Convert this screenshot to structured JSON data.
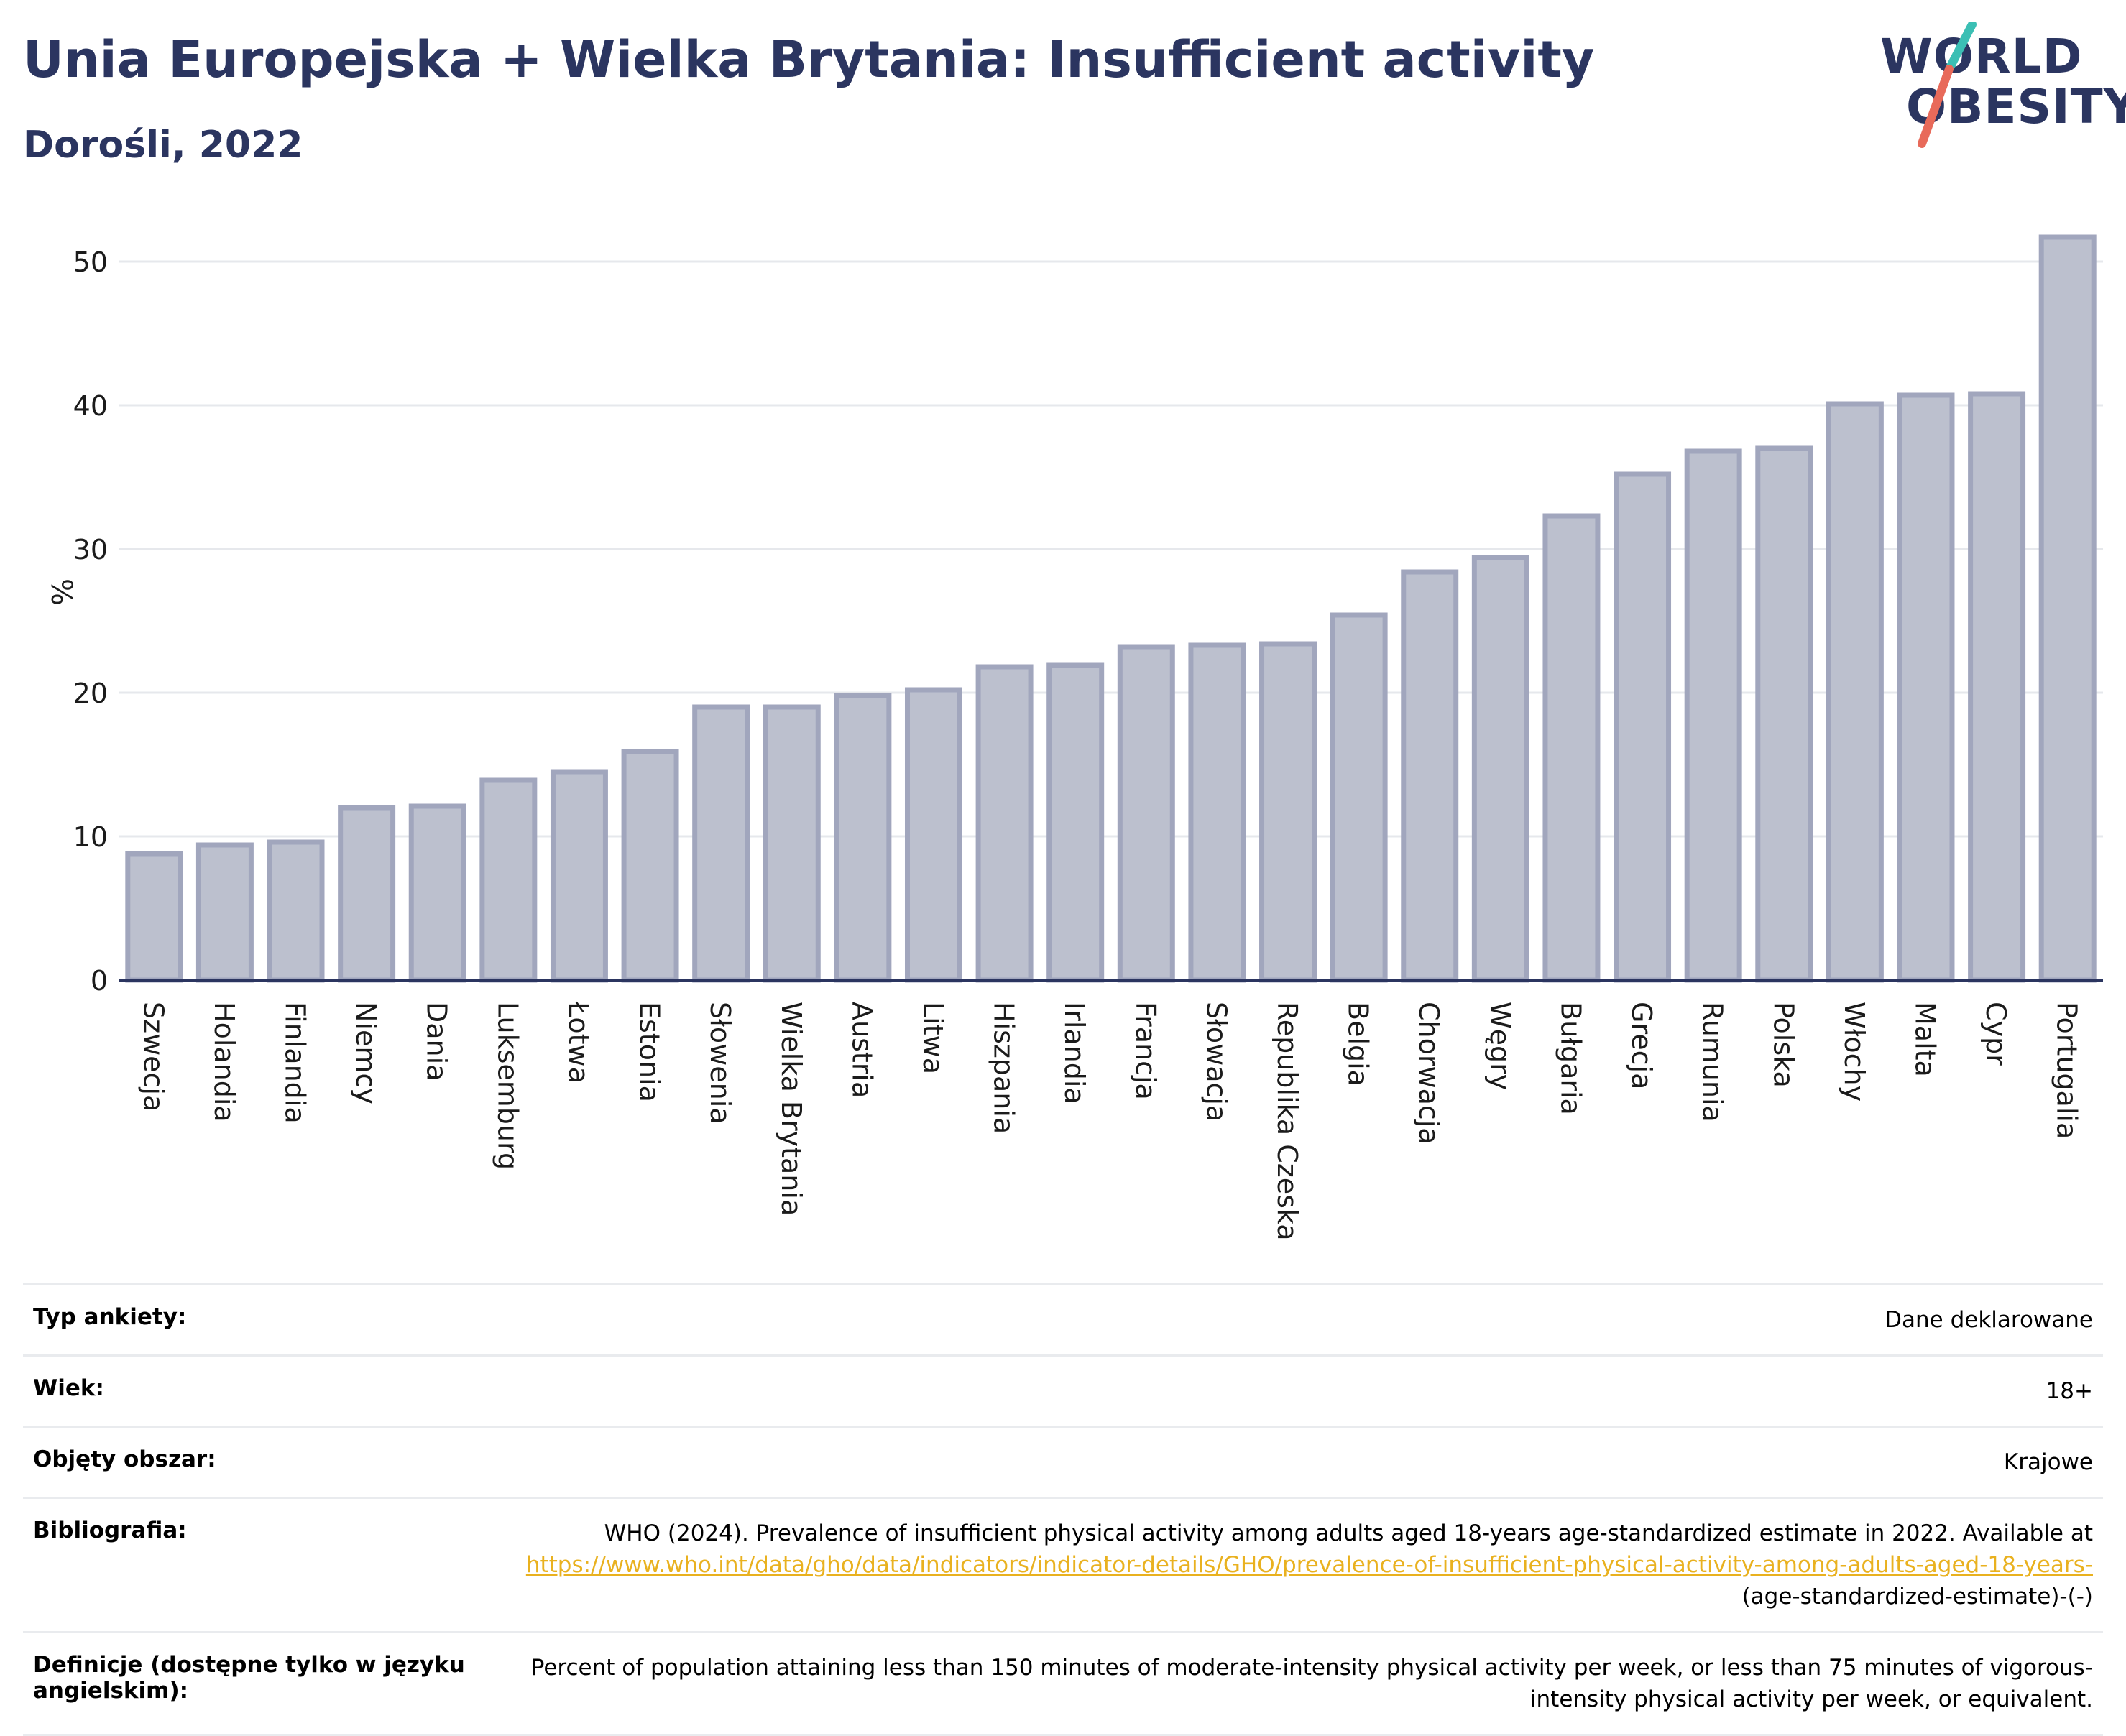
{
  "header": {
    "title": "Unia Europejska + Wielka Brytania: Insufficient activity",
    "subtitle": "Dorośli, 2022"
  },
  "logo": {
    "line1": "WORLD",
    "line2": "OBESITY",
    "colors": {
      "text": "#2b3560",
      "slash_top": "#3bbfb4",
      "slash_bottom": "#e86a5a"
    }
  },
  "chart_data": {
    "type": "bar",
    "ylabel": "%",
    "ylim": [
      0,
      52
    ],
    "yticks": [
      0,
      10,
      20,
      30,
      40,
      50
    ],
    "grid": true,
    "bar_color": "#bcc0ce",
    "bar_edge_color": "#a1a6bd",
    "categories": [
      "Szwecja",
      "Holandia",
      "Finlandia",
      "Niemcy",
      "Dania",
      "Luksemburg",
      "Łotwa",
      "Estonia",
      "Słowenia",
      "Wielka Brytania",
      "Austria",
      "Litwa",
      "Hiszpania",
      "Irlandia",
      "Francja",
      "Słowacja",
      "Republika Czeska",
      "Belgia",
      "Chorwacja",
      "Węgry",
      "Bułgaria",
      "Grecja",
      "Rumunia",
      "Polska",
      "Włochy",
      "Malta",
      "Cypr",
      "Portugalia"
    ],
    "values": [
      8.8,
      9.4,
      9.6,
      12.0,
      12.1,
      13.9,
      14.5,
      15.9,
      19.0,
      19.0,
      19.8,
      20.2,
      21.8,
      21.9,
      23.2,
      23.3,
      23.4,
      25.4,
      28.4,
      29.4,
      32.3,
      35.2,
      36.8,
      37.0,
      40.1,
      40.7,
      40.8,
      51.7
    ]
  },
  "meta": [
    {
      "key": "Typ ankiety:",
      "value": "Dane deklarowane"
    },
    {
      "key": "Wiek:",
      "value": "18+"
    },
    {
      "key": "Objęty obszar:",
      "value": "Krajowe"
    },
    {
      "key": "Bibliografia:",
      "value": "WHO (2024). Prevalence of insufficient physical activity among adults aged 18-years age-standardized estimate in 2022. Available at",
      "link": "https://www.who.int/data/gho/data/indicators/indicator-details/GHO/prevalence-of-insufficient-physical-activity-among-adults-aged-18-years-",
      "suffix": "(age-standardized-estimate)-(-)"
    },
    {
      "key": "Definicje (dostępne tylko w języku angielskim):",
      "value": "Percent of population attaining less than 150 minutes of moderate-intensity physical activity per week, or less than 75 minutes of vigorous-intensity physical activity per week, or equivalent."
    }
  ]
}
